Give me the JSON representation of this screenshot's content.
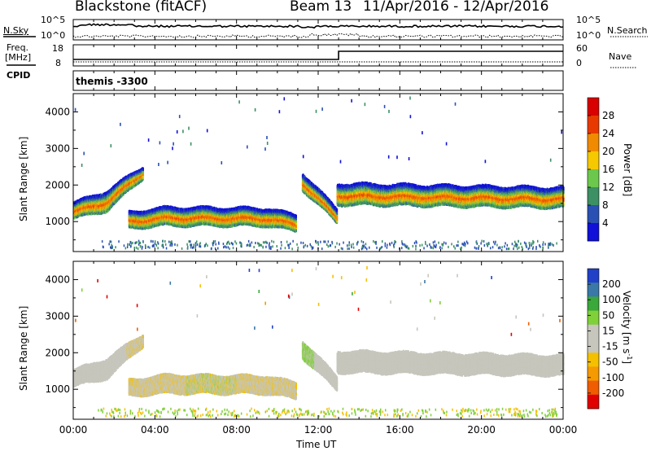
{
  "header": {
    "station": "Blackstone (fitACF)",
    "beam": "Beam 13",
    "date_range": "11/Apr/2016 - 12/Apr/2016"
  },
  "aux": {
    "nsky_label": "N.Sky",
    "nsky_ticks": [
      "10^5",
      "10^0"
    ],
    "nsearch_label": "N.Search",
    "nsearch_ticks": [
      "10^5",
      "10^0"
    ],
    "freq_label_1": "Freq.",
    "freq_label_2": "[MHz]",
    "freq_ticks": [
      "18",
      "8"
    ],
    "nave_label": "Nave",
    "nave_ticks": [
      "60",
      "0"
    ],
    "cpid_label": "CPID",
    "cpid_text": "themis -3300"
  },
  "colors": {
    "power": [
      "#1010d8",
      "#2a50b4",
      "#3d8f64",
      "#6cc84c",
      "#f5c800",
      "#f08a00",
      "#e83a00",
      "#d80000"
    ],
    "velocity": [
      "#e00000",
      "#f05c00",
      "#f59a00",
      "#f5c000",
      "#c6c6bc",
      "#c6c6bc",
      "#80d03a",
      "#3aa83a",
      "#3a78a8",
      "#2040c8"
    ],
    "ground": "#909090"
  },
  "chart_data": [
    {
      "type": "heatmap",
      "name": "power",
      "ylabel": "Slant Range [km]",
      "xlabel": "Time UT",
      "x_ticks": [
        "00:00",
        "04:00",
        "08:00",
        "12:00",
        "16:00",
        "20:00",
        "00:00"
      ],
      "xlim": [
        0,
        24
      ],
      "ylim": [
        180,
        4500
      ],
      "y_ticks": [
        1000,
        2000,
        3000,
        4000
      ],
      "colorbar_label": "Power [dB]",
      "colorbar_ticks": [
        "28",
        "24",
        "20",
        "16",
        "12",
        "8",
        "4"
      ],
      "bands": [
        {
          "t0": 0.0,
          "t1": 1.6,
          "c0": 1300,
          "c1": 1560,
          "w0": 420,
          "w1": 520
        },
        {
          "t0": 1.6,
          "t1": 3.4,
          "c0": 1560,
          "c1": 2350,
          "w0": 520,
          "w1": 300
        },
        {
          "t0": 2.7,
          "t1": 4.6,
          "c0": 1040,
          "c1": 1140,
          "w0": 420,
          "w1": 480
        },
        {
          "t0": 4.6,
          "t1": 9.5,
          "c0": 1140,
          "c1": 1120,
          "w0": 480,
          "w1": 460
        },
        {
          "t0": 9.5,
          "t1": 10.9,
          "c0": 1120,
          "c1": 950,
          "w0": 460,
          "w1": 420
        },
        {
          "t0": 11.2,
          "t1": 12.9,
          "c0": 2100,
          "c1": 1150,
          "w0": 450,
          "w1": 350
        },
        {
          "t0": 12.9,
          "t1": 24.0,
          "c0": 1750,
          "c1": 1650,
          "w0": 560,
          "w1": 520
        }
      ]
    },
    {
      "type": "heatmap",
      "name": "velocity",
      "ylabel": "Slant Range [km]",
      "xlabel": "Time UT",
      "x_ticks": [
        "00:00",
        "04:00",
        "08:00",
        "12:00",
        "16:00",
        "20:00",
        "00:00"
      ],
      "xlim": [
        0,
        24
      ],
      "ylim": [
        180,
        4500
      ],
      "y_ticks": [
        1000,
        2000,
        3000,
        4000
      ],
      "colorbar_label": "Velocity [m s-1]",
      "colorbar_ticks": [
        "200",
        "100",
        "50",
        "15",
        "-15",
        "-50",
        "-100",
        "-200"
      ]
    }
  ],
  "axis": {
    "time_label": "Time UT",
    "ylabel": "Slant Range [km]",
    "power_label": "Power [dB]",
    "velocity_label": "Velocity [m s",
    "velocity_exp": "-1",
    "velocity_close": "]"
  }
}
